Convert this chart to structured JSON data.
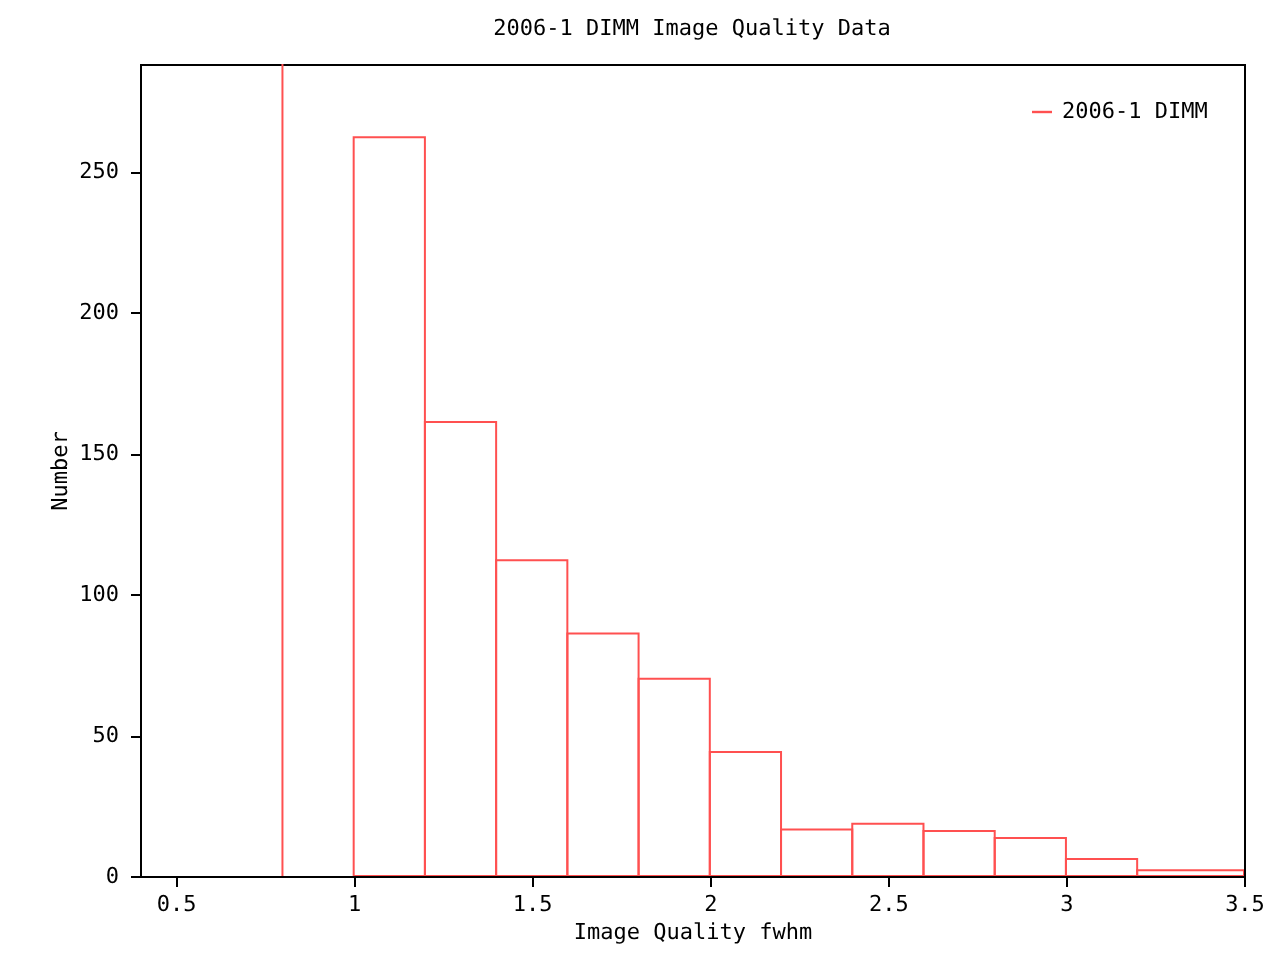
{
  "chart_data": {
    "type": "histogram",
    "title": "2006-1 DIMM Image Quality Data",
    "xlabel": "Image Quality fwhm",
    "ylabel": "Number",
    "bins": [
      1.0,
      1.2,
      1.4,
      1.6,
      1.8,
      2.0,
      2.2,
      2.4,
      2.6,
      2.8,
      3.0,
      3.2,
      3.5
    ],
    "series": [
      {
        "name": "2006-1 DIMM",
        "color": "#ff5050",
        "values": [
          262,
          161,
          112,
          86,
          70,
          44,
          16.5,
          18.5,
          16,
          13.5,
          6,
          2
        ]
      }
    ],
    "xlim": [
      0.4,
      3.5
    ],
    "xticks": [
      0.5,
      1,
      1.5,
      2,
      2.5,
      3,
      3.5
    ],
    "ylim": [
      0,
      288
    ],
    "yticks": [
      0,
      50,
      100,
      150,
      200,
      250
    ],
    "ref_lines": [
      {
        "axis": "x",
        "value": 0.8,
        "color": "#ff5050"
      }
    ],
    "grid": false,
    "legend": "top right"
  }
}
